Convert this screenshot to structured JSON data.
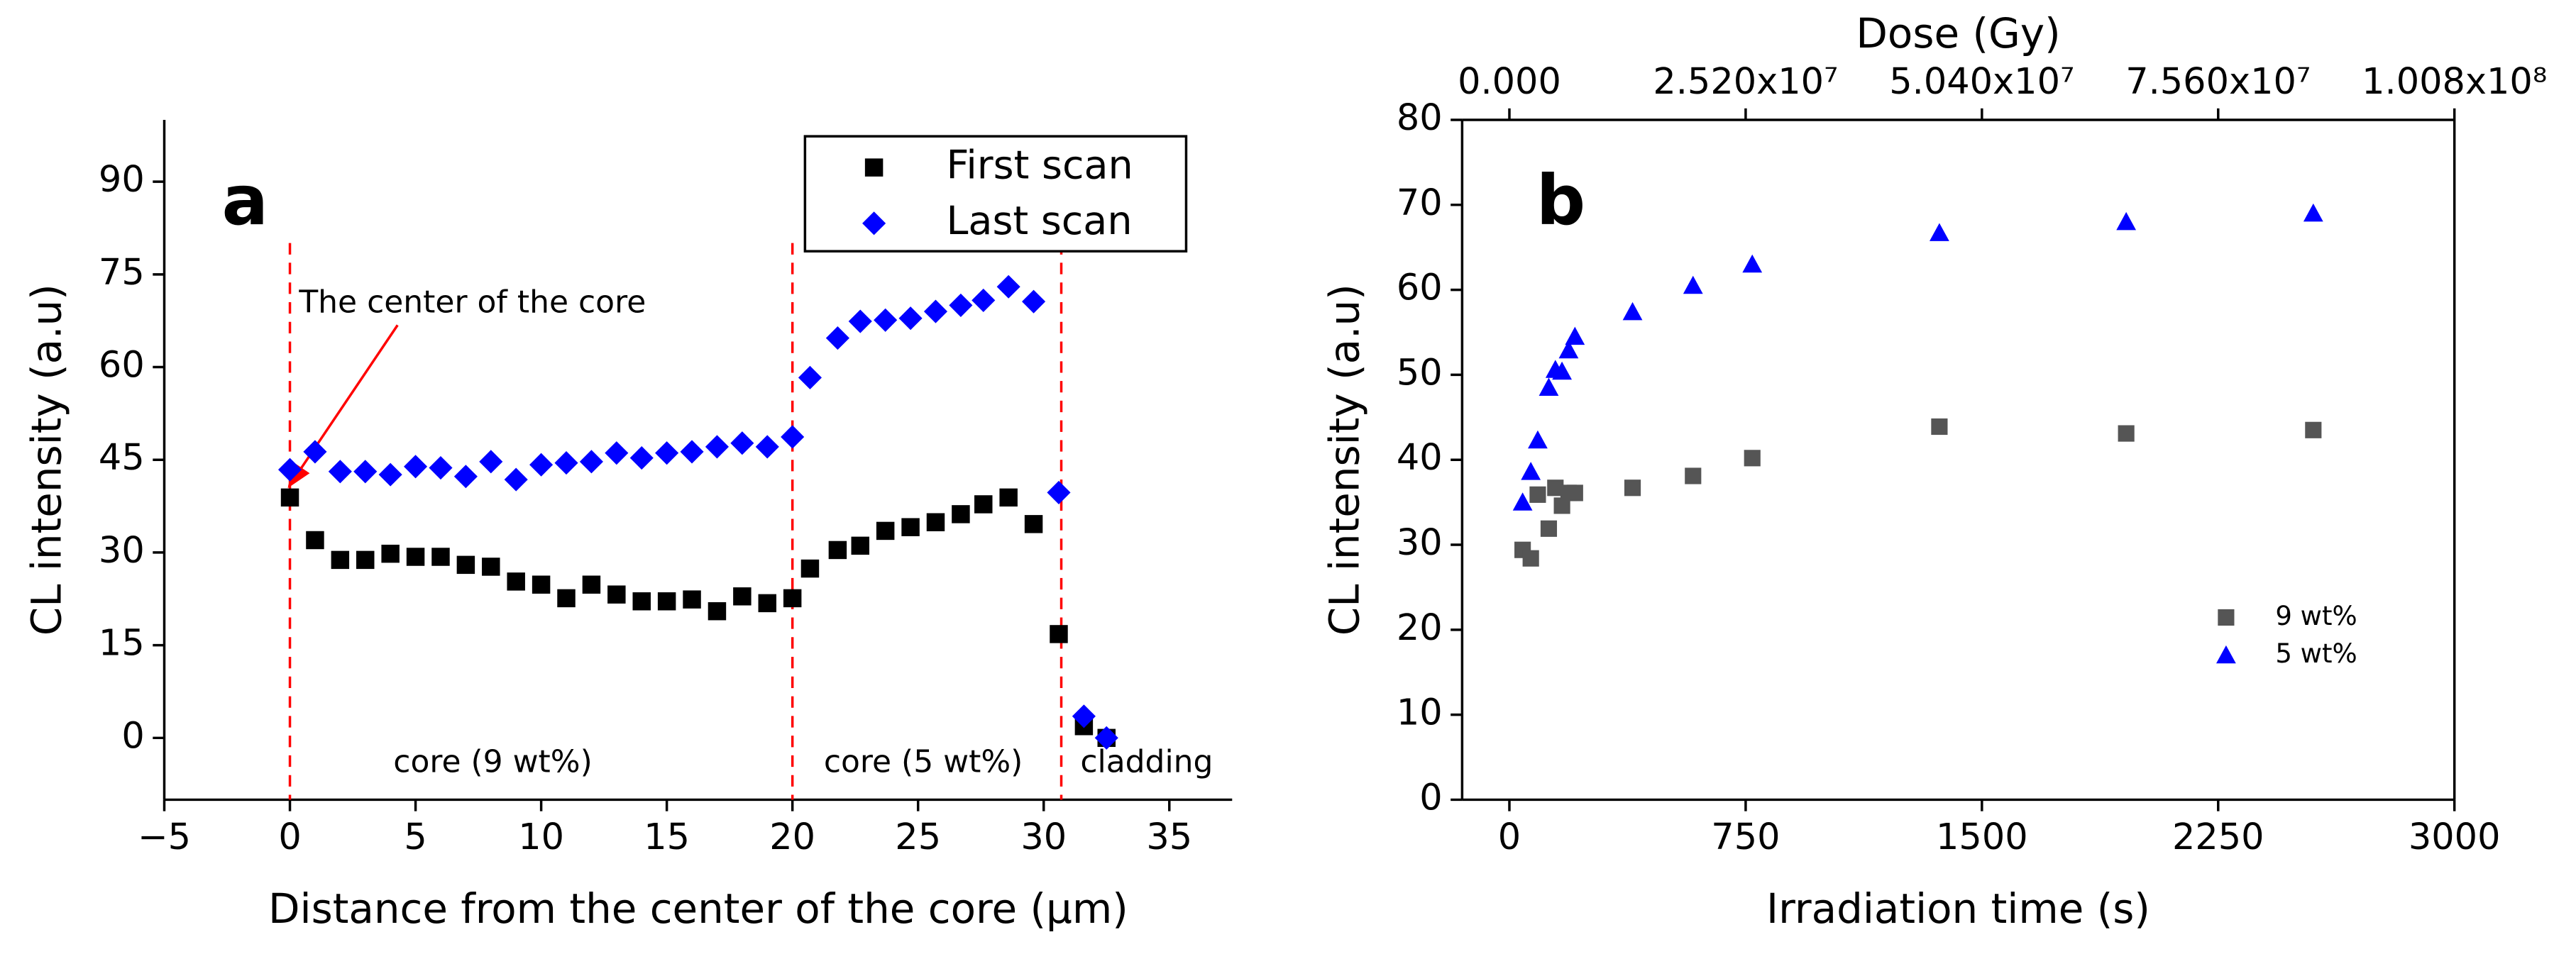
{
  "chart_data": [
    {
      "type": "scatter",
      "panel": "a",
      "xlabel": "Distance from the center of the core (μm)",
      "ylabel": "CL intensity (a.u)",
      "xlim": [
        -5,
        37.5
      ],
      "xticks": [
        {
          "value": -5,
          "label": "−5"
        },
        0,
        5,
        10,
        15,
        20,
        25,
        30,
        35
      ],
      "ylim": [
        -10,
        100
      ],
      "yticks": [
        0,
        15,
        30,
        45,
        60,
        75,
        90
      ],
      "vlines": [
        0,
        20,
        30.7
      ],
      "vline_color": "#ff0000",
      "annotations": [
        "The center of the core",
        "core (9 wt%)",
        "core (5 wt%)",
        "cladding"
      ],
      "legend": "upper right",
      "x": [
        0,
        1,
        2,
        3,
        4,
        5,
        6,
        7,
        8,
        9,
        10,
        11,
        12,
        13,
        14,
        15,
        16,
        17,
        18,
        19,
        20,
        20.7,
        21.8,
        22.7,
        23.7,
        24.7,
        25.7,
        26.7,
        27.6,
        28.6,
        29.6,
        30.6,
        31.6,
        32.5
      ],
      "series": [
        {
          "name": "First scan",
          "color": "#000000",
          "marker": "square",
          "values": [
            38.9,
            32,
            28.8,
            28.8,
            29.8,
            29.3,
            29.3,
            28,
            27.7,
            25.3,
            24.8,
            22.6,
            24.8,
            23.2,
            22.1,
            22.1,
            22.4,
            20.5,
            22.9,
            21.8,
            22.6,
            27.4,
            30.4,
            31.1,
            33.5,
            34.1,
            34.9,
            36.2,
            37.8,
            38.9,
            34.6,
            16.8,
            1.9,
            0
          ]
        },
        {
          "name": "Last scan",
          "color": "#0000ff",
          "marker": "diamond",
          "values": [
            43.4,
            46.3,
            43.1,
            43.1,
            42.6,
            43.9,
            43.7,
            42.3,
            44.7,
            41.8,
            44.2,
            44.5,
            44.7,
            46.1,
            45.3,
            46.1,
            46.3,
            47.1,
            47.7,
            47.1,
            48.7,
            58.3,
            64.7,
            67.4,
            67.6,
            67.9,
            69,
            70,
            70.8,
            73,
            70.6,
            39.7,
            3.5,
            0
          ]
        }
      ]
    },
    {
      "type": "scatter",
      "panel": "b",
      "xlabel": "Irradiation time (s)",
      "ylabel": "CL intensity (a.u)",
      "x2label": "Dose (Gy)",
      "xlim": [
        -150,
        3000
      ],
      "xticks": [
        0,
        750,
        1500,
        2250,
        3000
      ],
      "x2lim": [
        -5040000,
        100800000
      ],
      "x2ticks": [
        {
          "value": 0,
          "label": "0.000"
        },
        {
          "value": 25200000,
          "label": "2.520x10⁷"
        },
        {
          "value": 50400000,
          "label": "5.040x10⁷"
        },
        {
          "value": 75600000,
          "label": "7.560x10⁷"
        },
        {
          "value": 100800000,
          "label": "1.008x10⁸"
        }
      ],
      "ylim": [
        0,
        80
      ],
      "yticks": [
        0,
        10,
        20,
        30,
        40,
        50,
        60,
        70,
        80
      ],
      "legend": "lower right",
      "x": [
        42,
        68,
        90,
        125,
        146,
        167,
        188,
        208,
        391,
        583,
        771,
        1365,
        1958,
        2552
      ],
      "series": [
        {
          "name": "9 wt%",
          "color": "#555555",
          "marker": "square",
          "values": [
            29.4,
            28.4,
            35.9,
            31.9,
            36.7,
            34.6,
            36.1,
            36.1,
            36.7,
            38.1,
            40.2,
            43.9,
            43.1,
            43.5
          ]
        },
        {
          "name": "5 wt%",
          "color": "#0000ff",
          "marker": "triangle",
          "values": [
            35,
            38.6,
            42.3,
            48.5,
            50.6,
            50.4,
            52.9,
            54.5,
            57.4,
            60.5,
            63,
            66.7,
            68,
            69
          ]
        }
      ]
    }
  ]
}
